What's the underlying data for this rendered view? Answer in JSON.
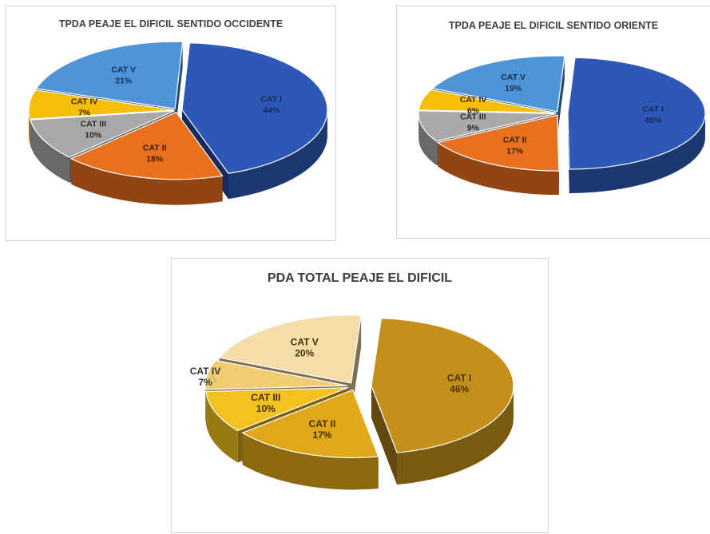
{
  "chart_data": [
    {
      "type": "pie",
      "title": "TPDA PEAJE EL DIFICIL SENTIDO OCCIDENTE",
      "slices": [
        {
          "label": "CAT I",
          "value": 44,
          "value_label": "44%",
          "color": "#2E58B8"
        },
        {
          "label": "CAT II",
          "value": 18,
          "value_label": "18%",
          "color": "#E8701F"
        },
        {
          "label": "CAT III",
          "value": 10,
          "value_label": "10%",
          "color": "#A9A9A9"
        },
        {
          "label": "CAT IV",
          "value": 7,
          "value_label": "7%",
          "color": "#F4BE0B"
        },
        {
          "label": "CAT V",
          "value": 21,
          "value_label": "21%",
          "color": "#4E94D8"
        }
      ]
    },
    {
      "type": "pie",
      "title": "TPDA PEAJE EL DIFICIL SENTIDO ORIENTE",
      "slices": [
        {
          "label": "CAT I",
          "value": 49,
          "value_label": "49%",
          "color": "#2E58B8"
        },
        {
          "label": "CAT II",
          "value": 17,
          "value_label": "17%",
          "color": "#E8701F"
        },
        {
          "label": "CAT III",
          "value": 9,
          "value_label": "9%",
          "color": "#A9A9A9"
        },
        {
          "label": "CAT IV",
          "value": 6,
          "value_label": "6%",
          "color": "#F4BE0B"
        },
        {
          "label": "CAT V",
          "value": 19,
          "value_label": "19%",
          "color": "#4E94D8"
        }
      ]
    },
    {
      "type": "pie",
      "title": "PDA TOTAL PEAJE  EL DIFICIL",
      "slices": [
        {
          "label": "CAT I",
          "value": 46,
          "value_label": "46%",
          "color": "#C4901C"
        },
        {
          "label": "CAT II",
          "value": 17,
          "value_label": "17%",
          "color": "#E1A718"
        },
        {
          "label": "CAT III",
          "value": 10,
          "value_label": "10%",
          "color": "#F4C21E"
        },
        {
          "label": "CAT IV",
          "value": 7,
          "value_label": "7%",
          "color": "#F2CC72"
        },
        {
          "label": "CAT V",
          "value": 20,
          "value_label": "20%",
          "color": "#F5DDAA"
        }
      ]
    }
  ]
}
